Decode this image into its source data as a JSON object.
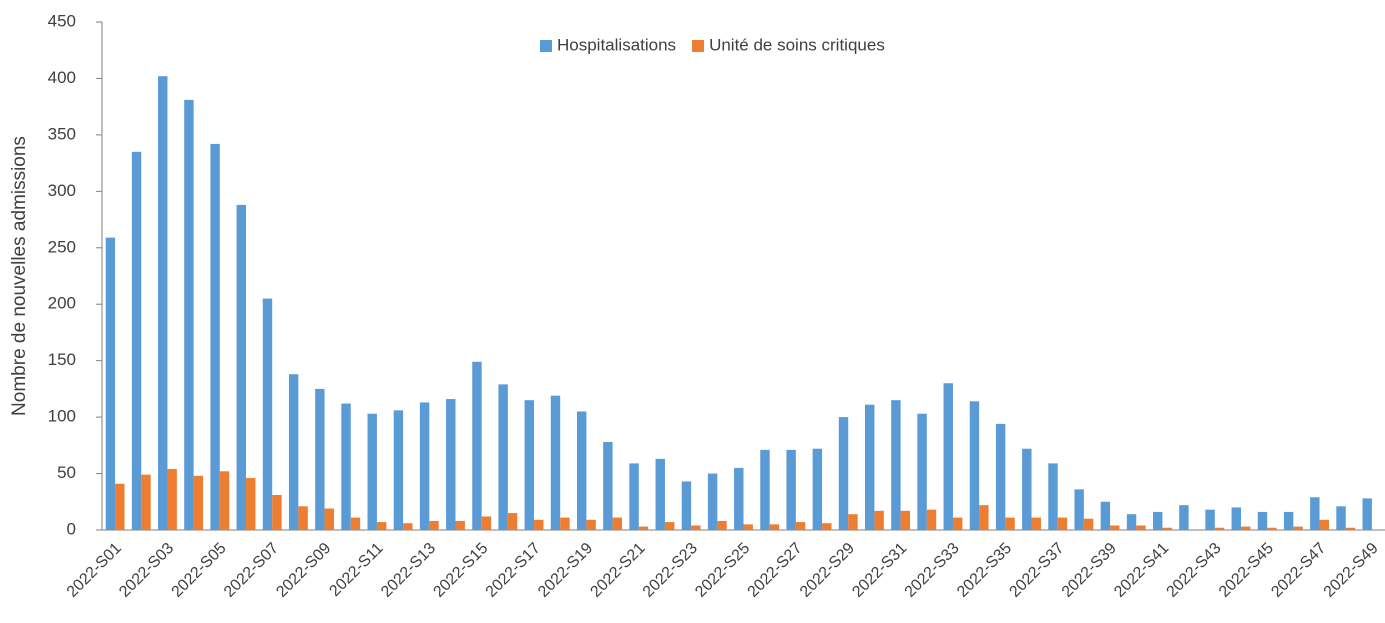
{
  "chart_data": {
    "type": "bar",
    "y_label": "Nombre de nouvelles admissions",
    "categories": [
      "2022-S01",
      null,
      "2022-S03",
      null,
      "2022-S05",
      null,
      "2022-S07",
      null,
      "2022-S09",
      null,
      "2022-S11",
      null,
      "2022-S13",
      null,
      "2022-S15",
      null,
      "2022-S17",
      null,
      "2022-S19",
      null,
      "2022-S21",
      null,
      "2022-S23",
      null,
      "2022-S25",
      null,
      "2022-S27",
      null,
      "2022-S29",
      null,
      "2022-S31",
      null,
      "2022-S33",
      null,
      "2022-S35",
      null,
      "2022-S37",
      null,
      "2022-S39",
      null,
      "2022-S41",
      null,
      "2022-S43",
      null,
      "2022-S45",
      null,
      "2022-S47",
      null,
      "2022-S49"
    ],
    "series": [
      {
        "name": "Hospitalisations",
        "color": "#5b9bd5",
        "values": [
          259,
          335,
          402,
          381,
          342,
          288,
          205,
          138,
          125,
          112,
          103,
          106,
          113,
          116,
          149,
          129,
          115,
          119,
          105,
          78,
          59,
          63,
          43,
          50,
          55,
          71,
          71,
          72,
          100,
          111,
          115,
          103,
          130,
          114,
          94,
          72,
          59,
          36,
          25,
          14,
          16,
          22,
          18,
          20,
          16,
          16,
          29,
          21,
          28
        ]
      },
      {
        "name": "Unité de soins critiques",
        "color": "#ed7d31",
        "values": [
          41,
          49,
          54,
          48,
          52,
          46,
          31,
          21,
          19,
          11,
          7,
          6,
          8,
          8,
          12,
          15,
          9,
          11,
          9,
          11,
          3,
          7,
          4,
          8,
          5,
          5,
          7,
          6,
          14,
          17,
          17,
          18,
          11,
          22,
          11,
          11,
          11,
          10,
          4,
          4,
          2,
          0,
          2,
          3,
          2,
          3,
          9,
          2,
          0
        ]
      }
    ],
    "ylim": [
      0,
      450
    ],
    "yticks": [
      0,
      50,
      100,
      150,
      200,
      250,
      300,
      350,
      400,
      450
    ],
    "legend": "top"
  }
}
